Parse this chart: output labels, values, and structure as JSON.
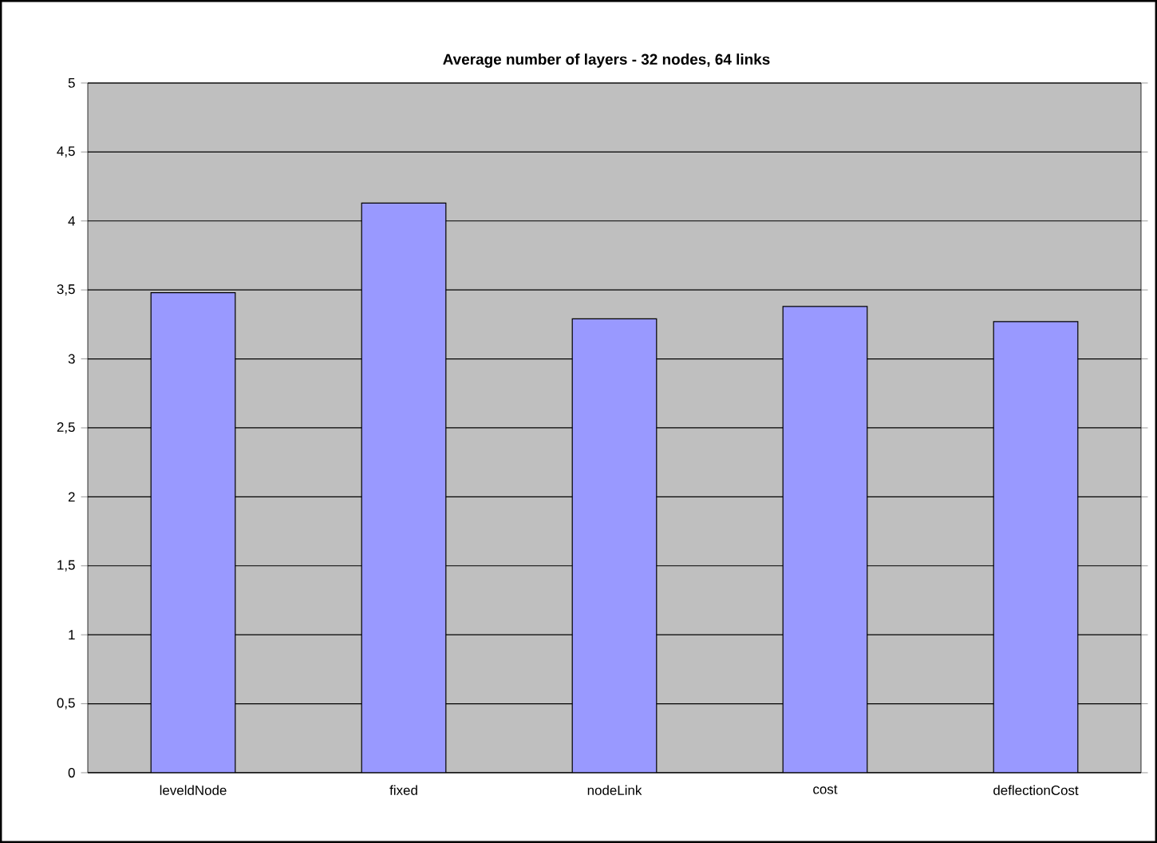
{
  "chart_data": {
    "type": "bar",
    "title": "Average number of layers - 32 nodes, 64 links",
    "categories": [
      "leveldNode",
      "fixed",
      "nodeLink",
      "cost",
      "deflectionCost"
    ],
    "values": [
      3.48,
      4.13,
      3.29,
      3.38,
      3.27
    ],
    "color": "#9999ff",
    "ylim": [
      0,
      5
    ],
    "yticks": [
      0,
      {
        "value": 0.5,
        "label": "0,5"
      },
      1,
      {
        "value": 1.5,
        "label": "1,5"
      },
      2,
      {
        "value": 2.5,
        "label": "2,5"
      },
      3,
      {
        "value": 3.5,
        "label": "3,5"
      },
      4,
      {
        "value": 4.5,
        "label": "4,5"
      },
      5
    ],
    "grid": "y"
  }
}
